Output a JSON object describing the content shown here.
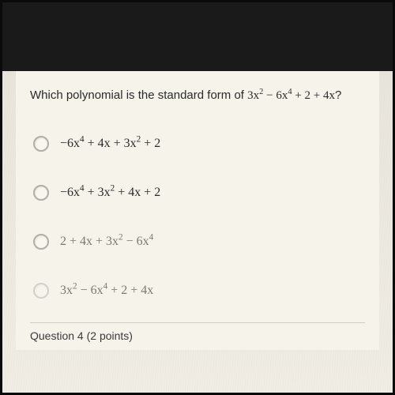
{
  "question": {
    "prefix": "Which polynomial is the standard form of ",
    "expression_html": "3x<sup>2</sup> − 6x<sup>4</sup> + 2 + 4x",
    "suffix": "?"
  },
  "options": [
    {
      "expr_html": "−6x<sup>4</sup> + 4x + 3x<sup>2</sup> + 2",
      "faded": false
    },
    {
      "expr_html": "−6x<sup>4</sup> + 3x<sup>2</sup> + 4x + 2",
      "faded": false
    },
    {
      "expr_html": "2 + 4x + 3x<sup>2</sup> − 6x<sup>4</sup>",
      "faded": true
    },
    {
      "expr_html": "3x<sup>2</sup> − 6x<sup>4</sup> + 2 + 4x",
      "faded": true
    }
  ],
  "footer": "Question 4 (2 points)",
  "colors": {
    "text": "#2a2a2a",
    "faded_text": "#7a7a72",
    "paper": "#f5f3ea",
    "radio_border": "#b0aea5"
  }
}
